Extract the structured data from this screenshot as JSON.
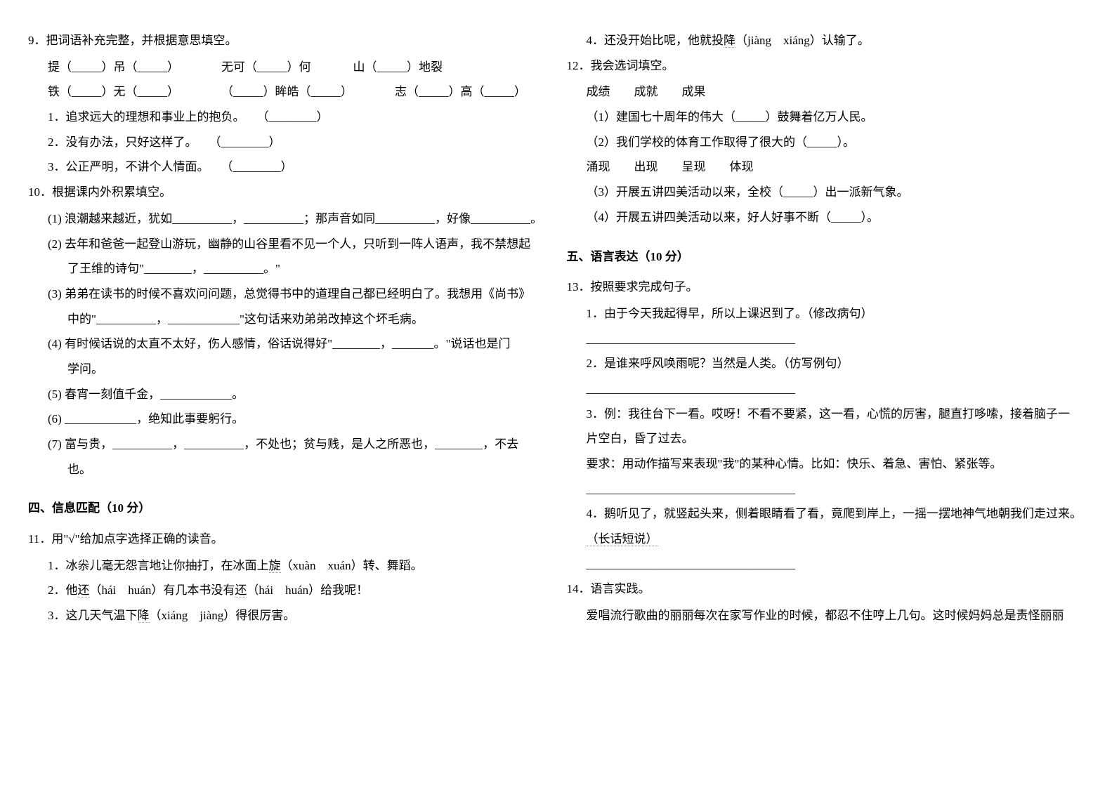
{
  "left": {
    "q9": {
      "prompt": "9．把词语补充完整，并根据意思填空。",
      "row1_a": "提（_____）吊（_____）",
      "row1_b": "无可（_____）何",
      "row1_c": "山（_____）地裂",
      "row2_a": "铁（_____）无（_____）",
      "row2_b": "（_____）眸皓（_____）",
      "row2_c": "志（_____）高（_____）",
      "item1": "1．追求远大的理想和事业上的抱负。　　（________）",
      "item2": "2．没有办法，只好这样了。　　（________）",
      "item3": "3．公正严明，不讲个人情面。　　（________）"
    },
    "q10": {
      "prompt": "10．根据课内外积累填空。",
      "item1": "(1) 浪潮越来越近，犹如__________，__________；那声音如同__________，好像__________。",
      "item2": "(2) 去年和爸爸一起登山游玩，幽静的山谷里看不见一个人，只听到一阵人语声，我不禁想起",
      "item2b": "了王维的诗句\"________，__________。\"",
      "item3": "(3) 弟弟在读书的时候不喜欢问问题，总觉得书中的道理自己都已经明白了。我想用《尚书》",
      "item3b": "中的\"__________，____________\"这句话来劝弟弟改掉这个坏毛病。",
      "item4": "(4) 有时候话说的太直不太好，伤人感情，俗话说得好\"________，_______。\"说话也是门",
      "item4b": "学问。",
      "item5": "(5) 春宵一刻值千金，____________。",
      "item6": "(6) ____________，绝知此事要躬行。",
      "item7": "(7) 富与贵，__________，__________，不处也；贫与贱，是人之所恶也，________，不去",
      "item7b": "也。"
    },
    "section4": "四、信息匹配（10 分）",
    "q11": {
      "prompt": "11．用\"√\"给加点字选择正确的读音。",
      "item1_a": "1．冰尜儿毫无怨言地让你抽打，在冰面上",
      "item1_dot": "旋",
      "item1_b": "（xuàn　xuán）转、舞蹈。",
      "item2_a": "2．他",
      "item2_dot1": "还",
      "item2_b": "（hái　huán）有几本书没有",
      "item2_dot2": "还",
      "item2_c": "（hái　huán）给我呢！",
      "item3_a": "3．这几天气温下",
      "item3_dot": "降",
      "item3_b": "（xiáng　jiàng）得很厉害。"
    }
  },
  "right": {
    "q11_item4_a": "4．还没开始比呢，他就投",
    "q11_item4_dot": "降",
    "q11_item4_b": "（jiàng　xiáng）认输了。",
    "q12": {
      "prompt": "12．我会选词填空。",
      "group1": "成绩　　成就　　成果",
      "item1": "（1）建国七十周年的伟大（_____）鼓舞着亿万人民。",
      "item2": "（2）我们学校的体育工作取得了很大的（_____）。",
      "group2": "涌现　　出现　　呈现　　体现",
      "item3": "（3）开展五讲四美活动以来，全校（_____）出一派新气象。",
      "item4": "（4）开展五讲四美活动以来，好人好事不断（_____）。"
    },
    "section5": "五、语言表达（10 分）",
    "q13": {
      "prompt": "13．按照要求完成句子。",
      "item1": "1．由于今天我起得早，所以上课迟到了。（修改病句）",
      "line1": "___________________________________",
      "item2": "2．是谁来呼风唤雨呢？当然是人类。（仿写例句）",
      "line2": "___________________________________",
      "item3a": "3．例：我往台下一看。哎呀！不看不要紧，这一看，心慌的厉害，腿直打哆嗦，接着脑子一",
      "item3b": "片空白，昏了过去。",
      "item3c": "要求：用动作描写来表现\"我\"的某种心情。比如：快乐、着急、害怕、紧张等。",
      "line3": "___________________________________",
      "item4a": "4．鹅听见了，就竖起头来，侧着眼睛看了看，竟爬到岸上，一摇一摆地神气地朝我们走过来。",
      "item4b_dot": "（长话短说）",
      "line4": "___________________________________"
    },
    "q14": {
      "prompt": "14．语言实践。",
      "text": "爱唱流行歌曲的丽丽每次在家写作业的时候，都忍不住哼上几句。这时候妈妈总是责怪丽丽"
    }
  }
}
